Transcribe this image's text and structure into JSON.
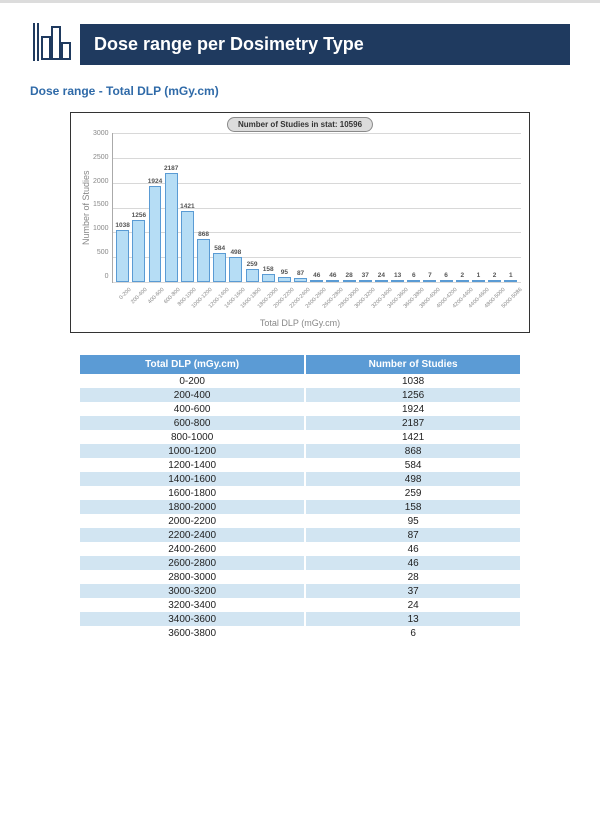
{
  "header": {
    "title": "Dose range per Dosimetry Type",
    "subtitle": "Dose range - Total DLP (mGy.cm)",
    "header_bg": "#1f3a5f",
    "subtitle_color": "#2f6aa8"
  },
  "chart": {
    "type": "bar",
    "studies_label_prefix": "Number of Studies in stat: ",
    "studies_count": 10596,
    "ylabel": "Number of Studies",
    "xlabel": "Total DLP (mGy.cm)",
    "ymin": 0,
    "ymax": 3000,
    "ytick_step": 500,
    "ytick_labels": [
      "3000",
      "2500",
      "2000",
      "1500",
      "1000",
      "500",
      "0"
    ],
    "bar_fill": "#b6ddf5",
    "bar_stroke": "#5a9bd4",
    "grid_color": "#d8d8d8",
    "background_color": "#ffffff",
    "categories": [
      "0-200",
      "200-400",
      "400-600",
      "600-800",
      "800-1000",
      "1000-1200",
      "1200-1400",
      "1400-1600",
      "1600-1800",
      "1800-2000",
      "2000-2200",
      "2200-2400",
      "2400-2600",
      "2600-2800",
      "2800-3000",
      "3000-3200",
      "3200-3400",
      "3400-3600",
      "3600-3800",
      "3800-4000",
      "4000-4200",
      "4200-4400",
      "4400-4600",
      "4800-5000",
      "5000-5086"
    ],
    "values": [
      1038,
      1256,
      1924,
      2187,
      1421,
      868,
      584,
      498,
      259,
      158,
      95,
      87,
      46,
      46,
      28,
      37,
      24,
      13,
      6,
      7,
      6,
      2,
      1,
      2,
      1
    ]
  },
  "table": {
    "header_bg": "#5b9bd5",
    "row_even_bg": "#ffffff",
    "row_odd_bg": "#d2e5f2",
    "columns": [
      "Total DLP (mGy.cm)",
      "Number of Studies"
    ],
    "rows": [
      [
        "0-200",
        "1038"
      ],
      [
        "200-400",
        "1256"
      ],
      [
        "400-600",
        "1924"
      ],
      [
        "600-800",
        "2187"
      ],
      [
        "800-1000",
        "1421"
      ],
      [
        "1000-1200",
        "868"
      ],
      [
        "1200-1400",
        "584"
      ],
      [
        "1400-1600",
        "498"
      ],
      [
        "1600-1800",
        "259"
      ],
      [
        "1800-2000",
        "158"
      ],
      [
        "2000-2200",
        "95"
      ],
      [
        "2200-2400",
        "87"
      ],
      [
        "2400-2600",
        "46"
      ],
      [
        "2600-2800",
        "46"
      ],
      [
        "2800-3000",
        "28"
      ],
      [
        "3000-3200",
        "37"
      ],
      [
        "3200-3400",
        "24"
      ],
      [
        "3400-3600",
        "13"
      ],
      [
        "3600-3800",
        "6"
      ]
    ]
  }
}
